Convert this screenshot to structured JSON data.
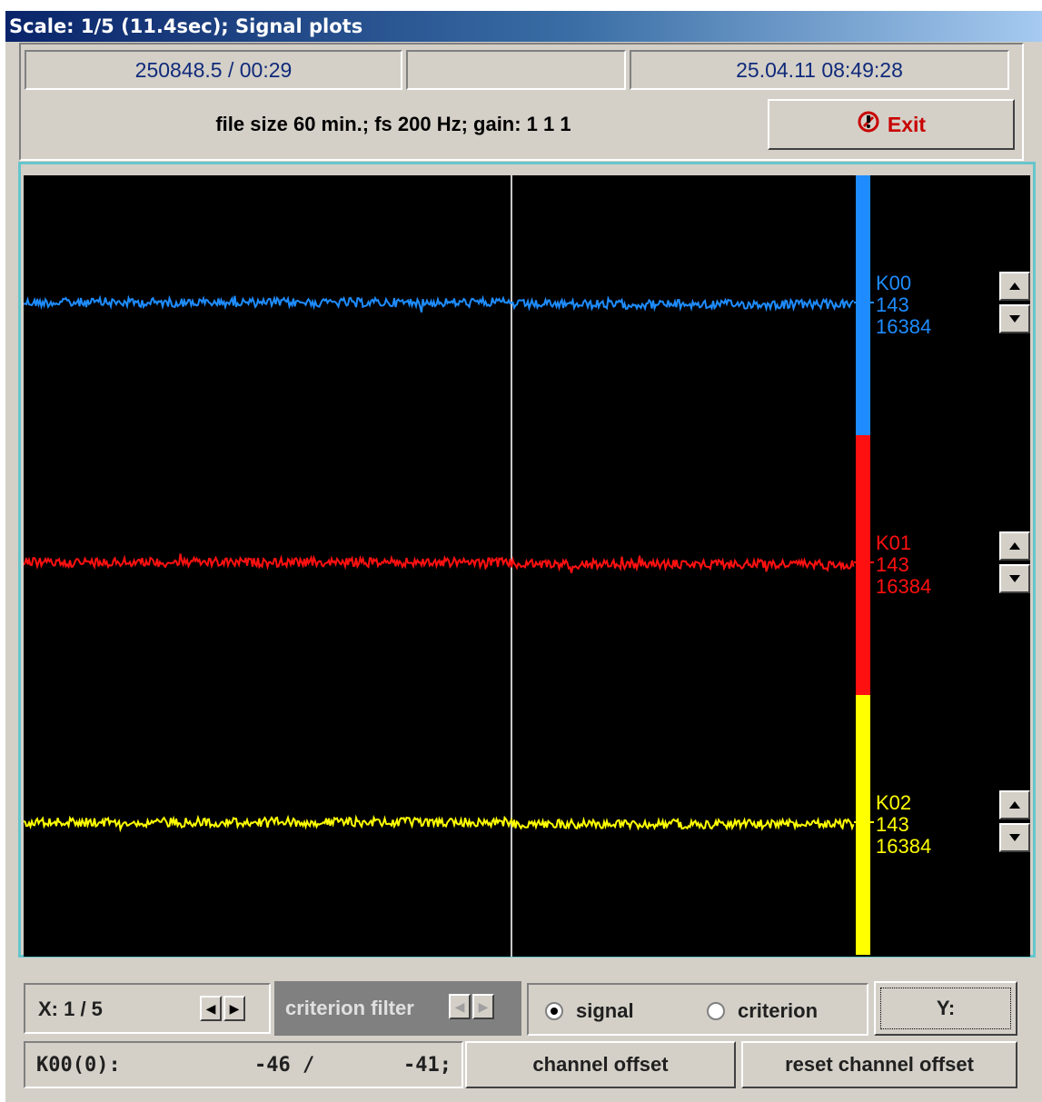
{
  "window": {
    "title": "Scale: 1/5 (11.4sec); Signal plots"
  },
  "header": {
    "position": "250848.5  /  00:29",
    "middle": "",
    "datetime": "25.04.11 08:49:28",
    "info": "file size 60 min.;  fs 200 Hz;  gain:  1 1 1",
    "exit_label": "Exit"
  },
  "channels": [
    {
      "name": "K00",
      "v1": "143",
      "v2": "16384",
      "color": "#1e8cff"
    },
    {
      "name": "K01",
      "v1": "143",
      "v2": "16384",
      "color": "#ff1010"
    },
    {
      "name": "K02",
      "v1": "143",
      "v2": "16384",
      "color": "#ffff00"
    }
  ],
  "controls": {
    "x_label": "X:  1 / 5",
    "criterion_filter": "criterion filter",
    "radio_signal": "signal",
    "radio_criterion": "criterion",
    "selected": "signal",
    "y_button": "Y:",
    "readout_label": "K00(0):",
    "readout_a": "-46  /",
    "readout_b": "-41;",
    "channel_offset": "channel offset",
    "reset_channel_offset": "reset channel offset"
  }
}
